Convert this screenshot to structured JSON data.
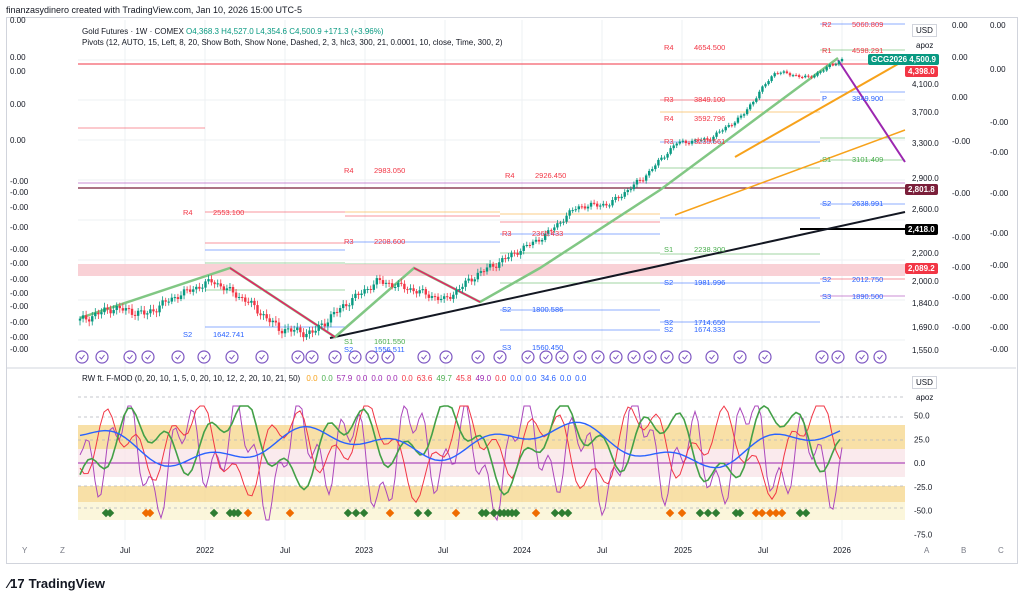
{
  "header": {
    "credit": "finanzasydinero created with TradingView.com, Jan 10, 2026 15:00 UTC-5"
  },
  "legend": {
    "symbol": "Gold Futures · 1W · COMEX",
    "ohlc": "O4,368.3 H4,527.0 L4,354.6 C4,500.9 +171.3 (+3.96%)",
    "pivots": "Pivots (12, AUTO, 15, Left, 8, 20, Show Both, Show None, Dashed, 2, 3, hlc3, 300, 21, 0.0001, 10, close, Time, 300, 2)",
    "indicator": "RW ft. F-MOD (0, 20, 10, 1, 5, 0, 20, 10, 12, 2, 20, 10, 21, 50)",
    "indicator_values": [
      "0.0",
      "0.0",
      "57.9",
      "0.0",
      "0.0",
      "0.0",
      "0.0",
      "63.6",
      "49.7",
      "45.8",
      "49.0",
      "0.0",
      "0.0",
      "0.0",
      "34.6",
      "0.0",
      "0.0"
    ]
  },
  "price_axis": {
    "currency": "USD",
    "mode": "apoz",
    "ticks": [
      "4,100.0",
      "3,700.0",
      "3,300.0",
      "2,900.0",
      "2,600.0",
      "2,200.0",
      "2,000.0",
      "1,840.0",
      "1,690.0",
      "1,550.0"
    ],
    "tags": [
      {
        "text": "GCG2026",
        "value": "4,500.9",
        "color": "#089981"
      },
      {
        "text": "4,398.0",
        "color": "#f23645"
      },
      {
        "text": "2,801.8",
        "color": "#7b1f3a"
      },
      {
        "text": "2,418.0",
        "color": "#000000"
      },
      {
        "text": "2,089.2",
        "color": "#f23645"
      }
    ]
  },
  "right_axis_extra": [
    "0.00",
    "0.00",
    "0.00",
    "0.00",
    "0.00",
    "-0.00",
    "-0.00",
    "-0.00",
    "-0.00",
    "-0.00",
    "-0.00",
    "-0.00"
  ],
  "left_axis_zeros": [
    "0.00",
    "0.00",
    "0.00",
    "0.00",
    "0.00",
    "-0.00",
    "-0.00",
    "-0.00",
    "-0.00",
    "-0.00",
    "-0.00",
    "-0.00",
    "-0.00",
    "-0.00",
    "-0.00",
    "-0.00",
    "-0.00",
    "-0.00"
  ],
  "osc_axis": {
    "currency": "USD",
    "mode": "apoz",
    "ticks": [
      "50.0",
      "25.0",
      "0.0",
      "-25.0",
      "-50.0",
      "-75.0"
    ]
  },
  "time_axis": {
    "labels": [
      "Jul",
      "2022",
      "Jul",
      "2023",
      "Jul",
      "2024",
      "Jul",
      "2025",
      "Jul",
      "2026"
    ],
    "corner_left": [
      "Y",
      "Z"
    ],
    "corner_right": [
      "A",
      "B",
      "C"
    ]
  },
  "pivot_labels": [
    {
      "name": "R2",
      "value": "5060.809"
    },
    {
      "name": "R1",
      "value": "4598.291"
    },
    {
      "name": "R4",
      "value": "4654.500"
    },
    {
      "name": "R3",
      "value": "3849.100"
    },
    {
      "name": "R4",
      "value": "3592.796"
    },
    {
      "name": "R3",
      "value": "3235.561"
    },
    {
      "name": "S1",
      "value": "3101.409"
    },
    {
      "name": "P",
      "value": "3849.900"
    },
    {
      "name": "S2",
      "value": "2638.991"
    },
    {
      "name": "R4",
      "value": "2983.050"
    },
    {
      "name": "R4",
      "value": "2926.450"
    },
    {
      "name": "R4",
      "value": "2553.100"
    },
    {
      "name": "R3",
      "value": "2208.600"
    },
    {
      "name": "R3",
      "value": "2365.433"
    },
    {
      "name": "S1",
      "value": "2238.300"
    },
    {
      "name": "S2",
      "value": "1981.996"
    },
    {
      "name": "S2",
      "value": "2012.750"
    },
    {
      "name": "S3",
      "value": "1890.500"
    },
    {
      "name": "S2",
      "value": "1800.586"
    },
    {
      "name": "S2",
      "value": "1714.650"
    },
    {
      "name": "S2",
      "value": "1674.333"
    },
    {
      "name": "S2",
      "value": "1642.741"
    },
    {
      "name": "S1",
      "value": "1601.550"
    },
    {
      "name": "S2",
      "value": "1556.511"
    },
    {
      "name": "S3",
      "value": "1560.450"
    }
  ],
  "chart_data": {
    "type": "line",
    "title": "Gold Futures · 1W · COMEX",
    "xlabel": "",
    "ylabel": "",
    "x": [
      "2021-05",
      "2021-08",
      "2021-11",
      "2022-02",
      "2022-03",
      "2022-06",
      "2022-09",
      "2022-11",
      "2023-02",
      "2023-05",
      "2023-07",
      "2023-10",
      "2023-12",
      "2024-03",
      "2024-06",
      "2024-09",
      "2024-11",
      "2025-02",
      "2025-04",
      "2025-06",
      "2025-09",
      "2025-10",
      "2025-12",
      "2026-01"
    ],
    "series": [
      {
        "values": [
          1730,
          1810,
          1770,
          1900,
          2000,
          1860,
          1680,
          1650,
          1830,
          2000,
          1940,
          1860,
          2050,
          2180,
          2350,
          2620,
          2650,
          2900,
          3300,
          3350,
          3650,
          4300,
          4200,
          4500
        ]
      }
    ],
    "ylim": [
      1550,
      5100
    ],
    "grid": true,
    "legend": "none",
    "oscillator": {
      "name": "RW ft. F-MOD",
      "ylim": [
        -75,
        60
      ],
      "bands": [
        50,
        25,
        0,
        -25,
        -50
      ]
    }
  }
}
